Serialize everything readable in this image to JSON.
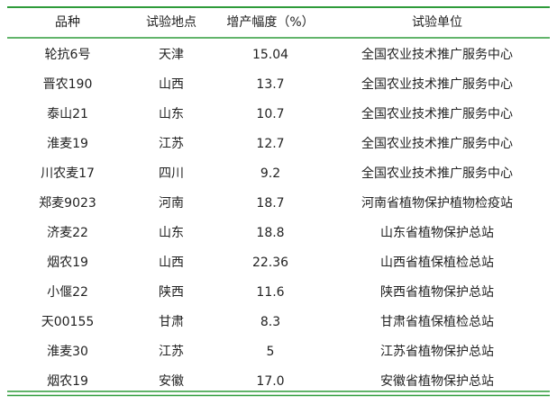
{
  "table": {
    "header": [
      "品种",
      "试验地点",
      "增产幅度（%）",
      "试验单位"
    ],
    "rows": [
      [
        "轮抗6号",
        "天津",
        "15.04",
        "全国农业技术推广服务中心"
      ],
      [
        "晋农190",
        "山西",
        "13.7",
        "全国农业技术推广服务中心"
      ],
      [
        "泰山21",
        "山东",
        "10.7",
        "全国农业技术推广服务中心"
      ],
      [
        "淮麦19",
        "江苏",
        "12.7",
        "全国农业技术推广服务中心"
      ],
      [
        "川农麦17",
        "四川",
        "9.2",
        "全国农业技术推广服务中心"
      ],
      [
        "郑麦9023",
        "河南",
        "18.7",
        "河南省植物保护植物检疫站"
      ],
      [
        "济麦22",
        "山东",
        "18.8",
        "山东省植物保护总站"
      ],
      [
        "烟农19",
        "山西",
        "22.36",
        "山西省植保植检总站"
      ],
      [
        "小偃22",
        "陕西",
        "11.6",
        "陕西省植物保护总站"
      ],
      [
        "天00155",
        "甘肃",
        "8.3",
        "甘肃省植保植检总站"
      ],
      [
        "淮麦30",
        "江苏",
        "5",
        "江苏省植物保护总站"
      ],
      [
        "烟农19",
        "安徽",
        "17.0",
        "安徽省植物保护总站"
      ]
    ]
  }
}
